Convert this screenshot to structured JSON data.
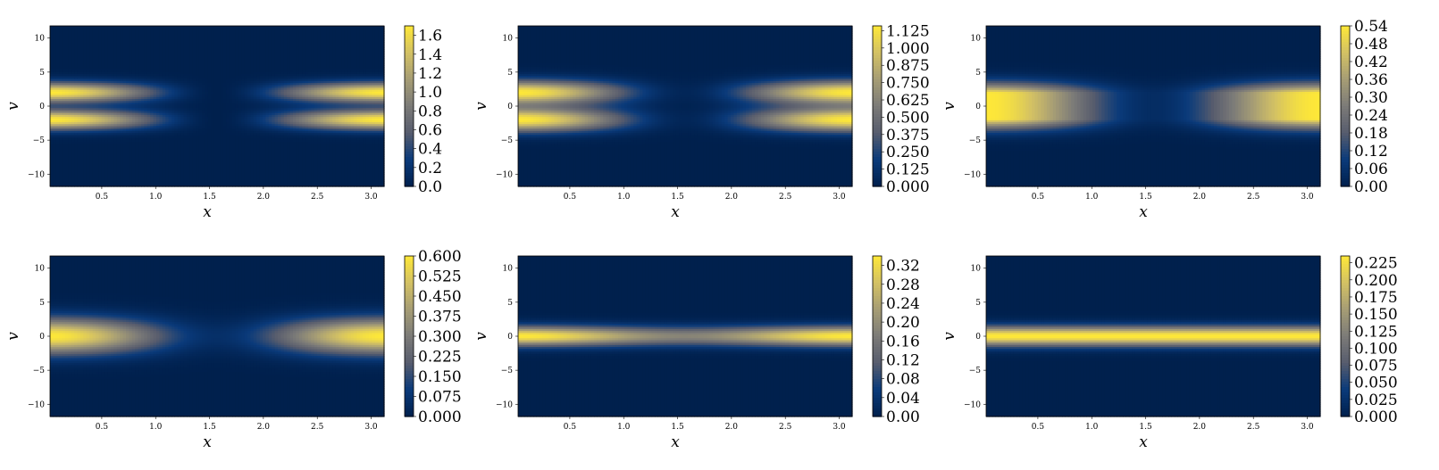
{
  "colormap": [
    "#00204d",
    "#0a3a7a",
    "#575c6d",
    "#7c7b78",
    "#a69d75",
    "#d3c164",
    "#fee838"
  ],
  "chart_data": [
    {
      "type": "heatmap",
      "xlabel": "x",
      "ylabel": "v",
      "xlim": [
        0.02,
        3.12
      ],
      "ylim": [
        -11.8,
        11.8
      ],
      "xticks": [
        "0.5",
        "1.0",
        "1.5",
        "2.0",
        "2.5",
        "3.0"
      ],
      "yticks": [
        "10",
        "5",
        "0",
        "−5",
        "−10"
      ],
      "colorbar": {
        "min": 0.0,
        "max": 1.7,
        "ticks": [
          "0.0",
          "0.2",
          "0.4",
          "0.6",
          "0.8",
          "1.0",
          "1.2",
          "1.4",
          "1.6"
        ]
      },
      "field": {
        "peak": 1.7,
        "beam_centers_v": [
          -2,
          2
        ],
        "beam_width_v": 1.0,
        "x_profile": "cos2",
        "x_floor": 0.0
      }
    },
    {
      "type": "heatmap",
      "xlabel": "x",
      "ylabel": "v",
      "xlim": [
        0.02,
        3.12
      ],
      "ylim": [
        -11.8,
        11.8
      ],
      "xticks": [
        "0.5",
        "1.0",
        "1.5",
        "2.0",
        "2.5",
        "3.0"
      ],
      "yticks": [
        "10",
        "5",
        "0",
        "−5",
        "−10"
      ],
      "colorbar": {
        "min": 0.0,
        "max": 1.16,
        "ticks": [
          "0.000",
          "0.125",
          "0.250",
          "0.375",
          "0.500",
          "0.625",
          "0.750",
          "0.875",
          "1.000",
          "1.125"
        ]
      },
      "field": {
        "peak": 1.16,
        "beam_centers_v": [
          -2,
          2
        ],
        "beam_width_v": 1.2,
        "x_profile": "cos2",
        "x_floor": 0.04
      }
    },
    {
      "type": "heatmap",
      "xlabel": "x",
      "ylabel": "v",
      "xlim": [
        0.02,
        3.12
      ],
      "ylim": [
        -11.8,
        11.8
      ],
      "xticks": [
        "0.5",
        "1.0",
        "1.5",
        "2.0",
        "2.5",
        "3.0"
      ],
      "yticks": [
        "10",
        "5",
        "0",
        "−5",
        "−10"
      ],
      "colorbar": {
        "min": 0.0,
        "max": 0.54,
        "ticks": [
          "0.00",
          "0.06",
          "0.12",
          "0.18",
          "0.24",
          "0.30",
          "0.36",
          "0.42",
          "0.48",
          "0.54"
        ]
      },
      "field": {
        "peak": 0.54,
        "beam_centers_v": [
          -1.2,
          1.2
        ],
        "beam_width_v": 1.5,
        "x_profile": "cos2",
        "x_floor": 0.08
      }
    },
    {
      "type": "heatmap",
      "xlabel": "x",
      "ylabel": "v",
      "xlim": [
        0.02,
        3.12
      ],
      "ylim": [
        -11.8,
        11.8
      ],
      "xticks": [
        "0.5",
        "1.0",
        "1.5",
        "2.0",
        "2.5",
        "3.0"
      ],
      "yticks": [
        "10",
        "5",
        "0",
        "−5",
        "−10"
      ],
      "colorbar": {
        "min": 0.0,
        "max": 0.6,
        "ticks": [
          "0.000",
          "0.075",
          "0.150",
          "0.225",
          "0.300",
          "0.375",
          "0.450",
          "0.525",
          "0.600"
        ]
      },
      "field": {
        "peak": 0.6,
        "beam_centers_v": [
          0
        ],
        "beam_width_v": 1.8,
        "x_profile": "cos2",
        "x_floor": 0.1
      }
    },
    {
      "type": "heatmap",
      "xlabel": "x",
      "ylabel": "v",
      "xlim": [
        0.02,
        3.12
      ],
      "ylim": [
        -11.8,
        11.8
      ],
      "xticks": [
        "0.5",
        "1.0",
        "1.5",
        "2.0",
        "2.5",
        "3.0"
      ],
      "yticks": [
        "10",
        "5",
        "0",
        "−5",
        "−10"
      ],
      "colorbar": {
        "min": 0.0,
        "max": 0.34,
        "ticks": [
          "0.00",
          "0.04",
          "0.08",
          "0.12",
          "0.16",
          "0.20",
          "0.24",
          "0.28",
          "0.32"
        ]
      },
      "field": {
        "peak": 0.34,
        "beam_centers_v": [
          0
        ],
        "beam_width_v": 1.0,
        "x_profile": "cos2",
        "x_floor": 0.55
      }
    },
    {
      "type": "heatmap",
      "xlabel": "x",
      "ylabel": "v",
      "xlim": [
        0.02,
        3.12
      ],
      "ylim": [
        -11.8,
        11.8
      ],
      "xticks": [
        "0.5",
        "1.0",
        "1.5",
        "2.0",
        "2.5",
        "3.0"
      ],
      "yticks": [
        "10",
        "5",
        "0",
        "−5",
        "−10"
      ],
      "colorbar": {
        "min": 0.0,
        "max": 0.235,
        "ticks": [
          "0.000",
          "0.025",
          "0.050",
          "0.075",
          "0.100",
          "0.125",
          "0.150",
          "0.175",
          "0.200",
          "0.225"
        ]
      },
      "field": {
        "peak": 0.235,
        "beam_centers_v": [
          0
        ],
        "beam_width_v": 1.0,
        "x_profile": "flat",
        "x_floor": 1.0
      }
    }
  ]
}
